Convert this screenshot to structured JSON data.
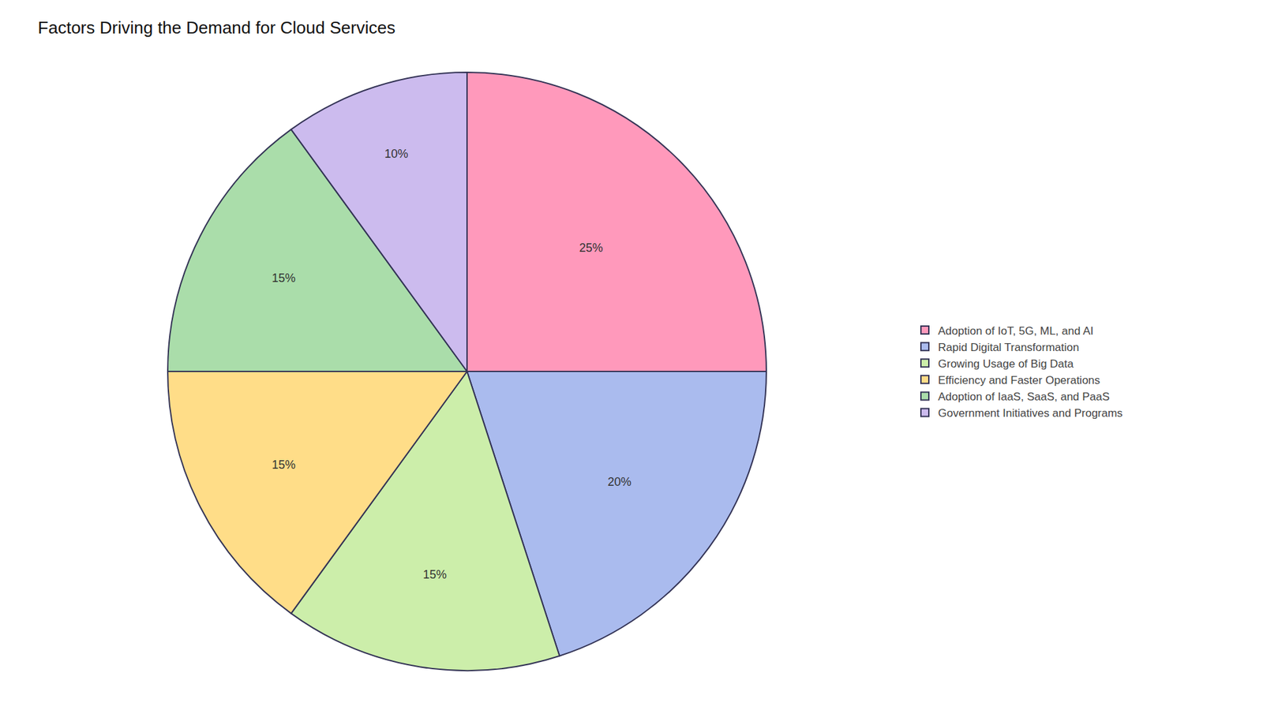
{
  "chart_data": {
    "type": "pie",
    "title": "Factors Driving the Demand for Cloud Services",
    "categories": [
      "Adoption of IoT, 5G, ML, and AI",
      "Rapid Digital Transformation",
      "Growing Usage of Big Data",
      "Efficiency and Faster Operations",
      "Adoption of IaaS, SaaS, and PaaS",
      "Government Initiatives and Programs"
    ],
    "values": [
      25,
      20,
      15,
      15,
      15,
      10
    ],
    "value_labels": [
      "25%",
      "20%",
      "15%",
      "15%",
      "15%",
      "10%"
    ],
    "colors": [
      "#FF99BB",
      "#AABBEE",
      "#CCEEAA",
      "#FFDD88",
      "#AADDAA",
      "#CCBBEE"
    ],
    "data_labels": true,
    "legend": "right"
  }
}
